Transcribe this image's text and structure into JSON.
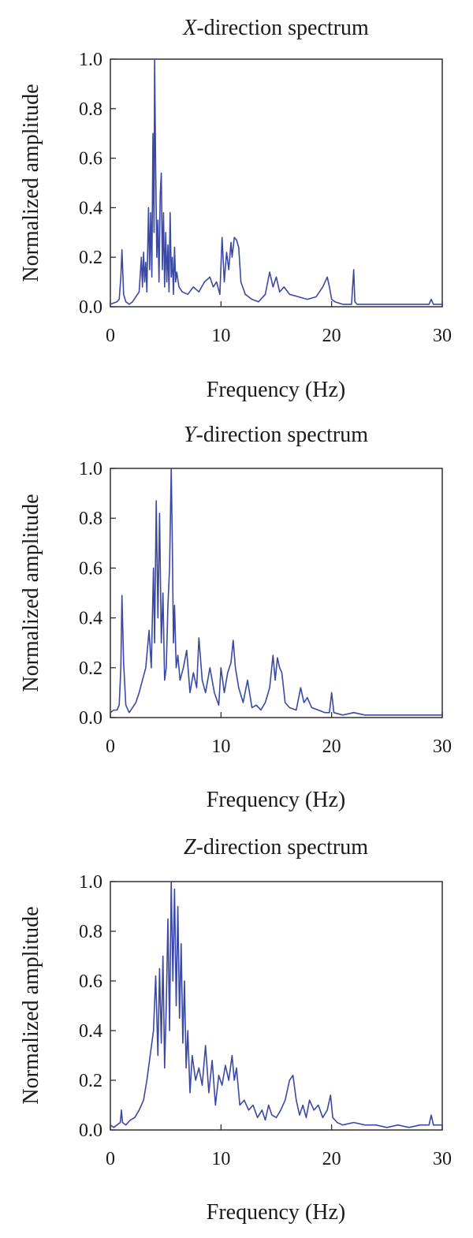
{
  "figure": {
    "series_color": "#3b48a6",
    "axis_color": "#222222"
  },
  "chart_data": [
    {
      "type": "line",
      "title_prefix": "X",
      "title_suffix": "-direction spectrum",
      "xlabel": "Frequency (Hz)",
      "ylabel": "Normalized amplitude",
      "xlim": [
        0,
        30
      ],
      "ylim": [
        0,
        1
      ],
      "xticks": [
        "0",
        "10",
        "20",
        "30"
      ],
      "yticks": [
        "0.0",
        "0.2",
        "0.4",
        "0.6",
        "0.8",
        "1.0"
      ],
      "grid": false,
      "legend": "none",
      "series": [
        {
          "x": [
            0,
            0.3,
            0.6,
            0.8,
            0.95,
            1.05,
            1.2,
            1.4,
            1.7,
            2.0,
            2.3,
            2.6,
            2.8,
            2.9,
            3.0,
            3.1,
            3.2,
            3.3,
            3.45,
            3.55,
            3.65,
            3.75,
            3.85,
            3.95,
            4.0,
            4.1,
            4.2,
            4.3,
            4.4,
            4.5,
            4.6,
            4.7,
            4.8,
            4.9,
            5.0,
            5.1,
            5.2,
            5.3,
            5.4,
            5.5,
            5.6,
            5.7,
            5.8,
            5.9,
            6.0,
            6.2,
            6.5,
            7.0,
            7.5,
            8.0,
            8.5,
            9.0,
            9.3,
            9.6,
            9.9,
            10.1,
            10.3,
            10.5,
            10.7,
            10.9,
            11.0,
            11.2,
            11.4,
            11.6,
            11.8,
            12.2,
            12.8,
            13.4,
            14.0,
            14.4,
            14.7,
            15.0,
            15.3,
            15.7,
            16.2,
            17.0,
            17.8,
            18.6,
            19.2,
            19.6,
            19.8,
            20.0,
            20.3,
            21.0,
            21.8,
            22.0,
            22.1,
            22.3,
            23.0,
            24.0,
            25.0,
            26.0,
            27.0,
            28.0,
            28.8,
            29.0,
            29.2,
            30.0
          ],
          "y": [
            0.01,
            0.015,
            0.02,
            0.03,
            0.12,
            0.23,
            0.05,
            0.02,
            0.01,
            0.02,
            0.04,
            0.06,
            0.2,
            0.08,
            0.22,
            0.1,
            0.18,
            0.06,
            0.4,
            0.15,
            0.38,
            0.12,
            0.7,
            0.3,
            1.0,
            0.55,
            0.2,
            0.35,
            0.1,
            0.45,
            0.54,
            0.15,
            0.38,
            0.08,
            0.3,
            0.1,
            0.25,
            0.06,
            0.38,
            0.12,
            0.2,
            0.05,
            0.24,
            0.1,
            0.14,
            0.08,
            0.06,
            0.05,
            0.08,
            0.06,
            0.1,
            0.12,
            0.08,
            0.1,
            0.05,
            0.28,
            0.1,
            0.22,
            0.15,
            0.26,
            0.2,
            0.28,
            0.27,
            0.24,
            0.1,
            0.05,
            0.03,
            0.02,
            0.05,
            0.14,
            0.08,
            0.12,
            0.06,
            0.08,
            0.05,
            0.04,
            0.03,
            0.04,
            0.08,
            0.12,
            0.08,
            0.03,
            0.02,
            0.01,
            0.01,
            0.15,
            0.02,
            0.01,
            0.01,
            0.01,
            0.01,
            0.01,
            0.01,
            0.01,
            0.01,
            0.03,
            0.01,
            0.01
          ]
        }
      ]
    },
    {
      "type": "line",
      "title_prefix": "Y",
      "title_suffix": "-direction spectrum",
      "xlabel": "Frequency (Hz)",
      "ylabel": "Normalized amplitude",
      "xlim": [
        0,
        30
      ],
      "ylim": [
        0,
        1
      ],
      "xticks": [
        "0",
        "10",
        "20",
        "30"
      ],
      "yticks": [
        "0.0",
        "0.2",
        "0.4",
        "0.6",
        "0.8",
        "1.0"
      ],
      "grid": false,
      "legend": "none",
      "series": [
        {
          "x": [
            0,
            0.3,
            0.6,
            0.8,
            0.95,
            1.05,
            1.2,
            1.4,
            1.7,
            2.0,
            2.3,
            2.6,
            2.9,
            3.2,
            3.5,
            3.7,
            3.9,
            4.0,
            4.15,
            4.3,
            4.45,
            4.6,
            4.75,
            4.9,
            5.05,
            5.2,
            5.35,
            5.5,
            5.6,
            5.7,
            5.8,
            5.95,
            6.1,
            6.3,
            6.6,
            6.9,
            7.2,
            7.5,
            7.8,
            8.0,
            8.3,
            8.6,
            9.0,
            9.4,
            9.8,
            10.0,
            10.3,
            10.6,
            10.9,
            11.1,
            11.3,
            11.6,
            12.0,
            12.4,
            12.8,
            13.2,
            13.6,
            14.0,
            14.4,
            14.7,
            14.9,
            15.1,
            15.3,
            15.5,
            15.8,
            16.2,
            16.8,
            17.2,
            17.5,
            17.8,
            18.2,
            18.8,
            19.4,
            19.8,
            20.0,
            20.2,
            21.0,
            22.0,
            23.0,
            24.0,
            25.0,
            26.0,
            27.0,
            28.0,
            29.0,
            30.0
          ],
          "y": [
            0.02,
            0.03,
            0.03,
            0.05,
            0.2,
            0.49,
            0.22,
            0.05,
            0.02,
            0.04,
            0.06,
            0.1,
            0.15,
            0.2,
            0.35,
            0.2,
            0.6,
            0.3,
            0.87,
            0.4,
            0.82,
            0.3,
            0.5,
            0.15,
            0.2,
            0.45,
            0.6,
            1.0,
            0.7,
            0.3,
            0.45,
            0.2,
            0.25,
            0.15,
            0.2,
            0.27,
            0.1,
            0.18,
            0.12,
            0.32,
            0.15,
            0.1,
            0.2,
            0.1,
            0.05,
            0.2,
            0.1,
            0.18,
            0.22,
            0.31,
            0.2,
            0.12,
            0.06,
            0.15,
            0.04,
            0.05,
            0.03,
            0.06,
            0.12,
            0.25,
            0.15,
            0.24,
            0.2,
            0.18,
            0.06,
            0.04,
            0.03,
            0.12,
            0.06,
            0.08,
            0.04,
            0.03,
            0.02,
            0.02,
            0.1,
            0.02,
            0.01,
            0.02,
            0.01,
            0.01,
            0.01,
            0.01,
            0.01,
            0.01,
            0.01,
            0.01
          ]
        }
      ]
    },
    {
      "type": "line",
      "title_prefix": "Z",
      "title_suffix": "-direction spectrum",
      "xlabel": "Frequency (Hz)",
      "ylabel": "Normalized amplitude",
      "xlim": [
        0,
        30
      ],
      "ylim": [
        0,
        1
      ],
      "xticks": [
        "0",
        "10",
        "20",
        "30"
      ],
      "yticks": [
        "0.0",
        "0.2",
        "0.4",
        "0.6",
        "0.8",
        "1.0"
      ],
      "grid": false,
      "legend": "none",
      "series": [
        {
          "x": [
            0,
            0.3,
            0.6,
            0.9,
            1.0,
            1.1,
            1.4,
            1.8,
            2.2,
            2.6,
            3.0,
            3.3,
            3.6,
            3.9,
            4.1,
            4.3,
            4.45,
            4.6,
            4.75,
            4.9,
            5.05,
            5.2,
            5.35,
            5.5,
            5.65,
            5.8,
            5.95,
            6.1,
            6.25,
            6.4,
            6.55,
            6.7,
            6.85,
            7.0,
            7.2,
            7.4,
            7.7,
            8.0,
            8.3,
            8.6,
            8.9,
            9.2,
            9.5,
            9.8,
            10.1,
            10.4,
            10.7,
            11.0,
            11.2,
            11.4,
            11.7,
            12.1,
            12.5,
            12.9,
            13.3,
            13.7,
            14.0,
            14.3,
            14.6,
            15.0,
            15.4,
            15.8,
            16.2,
            16.5,
            16.8,
            17.1,
            17.4,
            17.7,
            18.0,
            18.4,
            18.8,
            19.2,
            19.6,
            19.9,
            20.1,
            20.5,
            21.0,
            22.0,
            23.0,
            24.0,
            25.0,
            26.0,
            27.0,
            28.0,
            28.8,
            29.0,
            29.2,
            30.0
          ],
          "y": [
            0.02,
            0.01,
            0.02,
            0.03,
            0.08,
            0.03,
            0.02,
            0.04,
            0.05,
            0.08,
            0.12,
            0.2,
            0.3,
            0.4,
            0.62,
            0.3,
            0.65,
            0.35,
            0.7,
            0.25,
            0.5,
            0.85,
            0.4,
            1.0,
            0.6,
            0.97,
            0.5,
            0.9,
            0.45,
            0.75,
            0.35,
            0.6,
            0.25,
            0.4,
            0.15,
            0.3,
            0.2,
            0.25,
            0.18,
            0.34,
            0.15,
            0.28,
            0.1,
            0.22,
            0.18,
            0.26,
            0.2,
            0.3,
            0.2,
            0.25,
            0.1,
            0.12,
            0.08,
            0.1,
            0.05,
            0.08,
            0.04,
            0.1,
            0.06,
            0.05,
            0.08,
            0.12,
            0.2,
            0.22,
            0.12,
            0.06,
            0.1,
            0.05,
            0.12,
            0.08,
            0.1,
            0.05,
            0.08,
            0.14,
            0.05,
            0.03,
            0.02,
            0.03,
            0.02,
            0.02,
            0.01,
            0.02,
            0.01,
            0.02,
            0.02,
            0.06,
            0.02,
            0.02
          ]
        }
      ]
    }
  ]
}
